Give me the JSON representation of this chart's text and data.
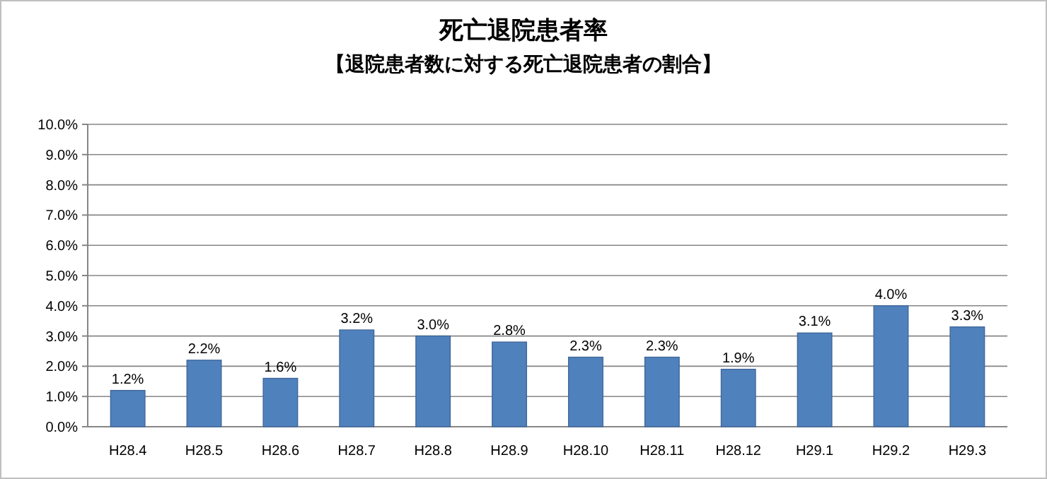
{
  "chart_data": {
    "type": "bar",
    "title": "死亡退院患者率",
    "subtitle": "【退院患者数に対する死亡退院患者の割合】",
    "categories": [
      "H28.4",
      "H28.5",
      "H28.6",
      "H28.7",
      "H28.8",
      "H28.9",
      "H28.10",
      "H28.11",
      "H28.12",
      "H29.1",
      "H29.2",
      "H29.3"
    ],
    "values": [
      1.2,
      2.2,
      1.6,
      3.2,
      3.0,
      2.8,
      2.3,
      2.3,
      1.9,
      3.1,
      4.0,
      3.3
    ],
    "value_labels": [
      "1.2%",
      "2.2%",
      "1.6%",
      "3.2%",
      "3.0%",
      "2.8%",
      "2.3%",
      "2.3%",
      "1.9%",
      "3.1%",
      "4.0%",
      "3.3%"
    ],
    "color": "#4f81bd",
    "ylim": [
      0,
      10
    ],
    "yticks": [
      {
        "value": 0,
        "label": "0.0%"
      },
      {
        "value": 1,
        "label": "1.0%"
      },
      {
        "value": 2,
        "label": "2.0%"
      },
      {
        "value": 3,
        "label": "3.0%"
      },
      {
        "value": 4,
        "label": "4.0%"
      },
      {
        "value": 5,
        "label": "5.0%"
      },
      {
        "value": 6,
        "label": "6.0%"
      },
      {
        "value": 7,
        "label": "7.0%"
      },
      {
        "value": 8,
        "label": "8.0%"
      },
      {
        "value": 9,
        "label": "9.0%"
      },
      {
        "value": 10,
        "label": "10.0%"
      }
    ],
    "grid": "y"
  }
}
